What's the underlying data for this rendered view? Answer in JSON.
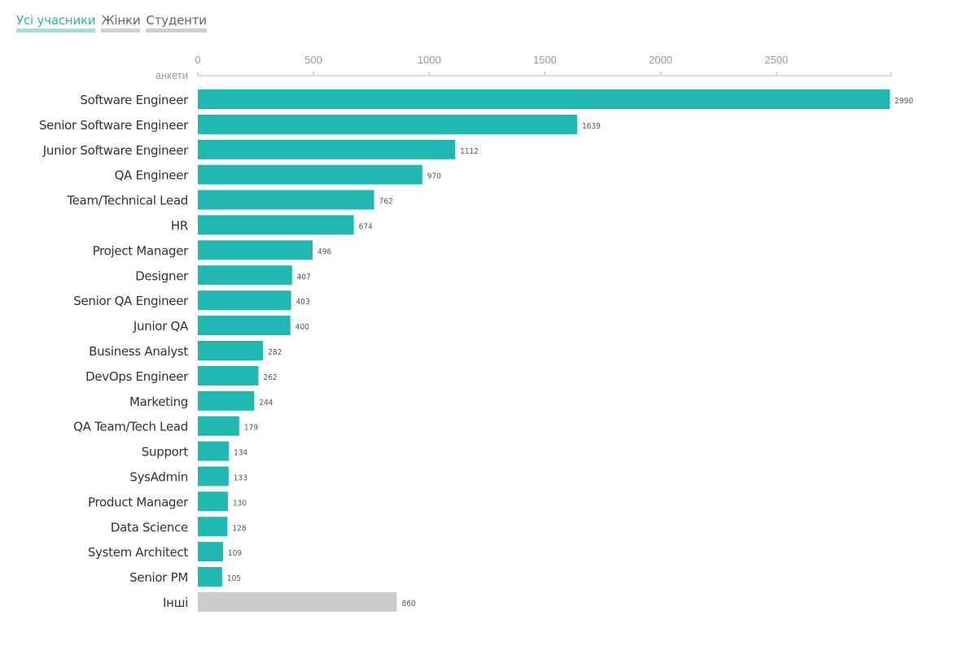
{
  "tabs": [
    {
      "label": "Усі учасники",
      "active": true
    },
    {
      "label": "Жінки",
      "active": false
    },
    {
      "label": "Студенти",
      "active": false
    }
  ],
  "colors": {
    "bar": "#20b8b0",
    "other_bar": "#cccccc",
    "axis": "#bbbbbb"
  },
  "chart_data": {
    "type": "bar",
    "orientation": "horizontal",
    "xlabel": "анкети",
    "xlim": [
      0,
      3000
    ],
    "xticks": [
      0,
      500,
      1000,
      1500,
      2000,
      2500
    ],
    "grid": false,
    "categories": [
      "Software Engineer",
      "Senior Software Engineer",
      "Junior Software Engineer",
      "QA Engineer",
      "Team/Technical Lead",
      "HR",
      "Project Manager",
      "Designer",
      "Senior QA Engineer",
      "Junior QA",
      "Business Analyst",
      "DevOps Engineer",
      "Marketing",
      "QA Team/Tech Lead",
      "Support",
      "SysAdmin",
      "Product Manager",
      "Data Science",
      "System Architect",
      "Senior PM",
      "Інші"
    ],
    "values": [
      2990,
      1639,
      1112,
      970,
      762,
      674,
      496,
      407,
      403,
      400,
      282,
      262,
      244,
      179,
      134,
      133,
      130,
      128,
      109,
      105,
      860
    ]
  }
}
